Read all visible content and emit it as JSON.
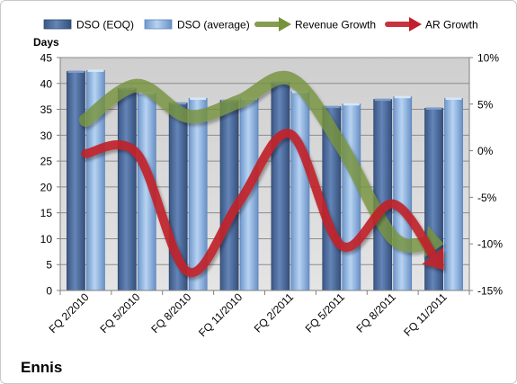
{
  "company": "Ennis",
  "chart_data": {
    "type": "bar",
    "title": "",
    "categories": [
      "FQ 2/2010",
      "FQ 5/2010",
      "FQ 8/2010",
      "FQ 11/2010",
      "FQ 2/2011",
      "FQ 5/2011",
      "FQ 8/2011",
      "FQ 11/2011"
    ],
    "ylabel": "Days",
    "ylim": [
      0,
      45
    ],
    "yticks": [
      "0",
      "5",
      "10",
      "15",
      "20",
      "25",
      "30",
      "35",
      "40",
      "45"
    ],
    "y2lim": [
      -15,
      10
    ],
    "y2ticks": [
      "-15%",
      "-10%",
      "-5%",
      "0%",
      "5%",
      "10%"
    ],
    "grid": true,
    "legend_position": "top",
    "series": [
      {
        "name": "DSO (EOQ)",
        "kind": "bar",
        "axis": "left",
        "color": "#4a6a99",
        "values": [
          42.3,
          39.0,
          36.2,
          36.7,
          40.2,
          35.5,
          36.9,
          35.2
        ]
      },
      {
        "name": "DSO (average)",
        "kind": "bar",
        "axis": "left",
        "color": "#8eb4e3",
        "values": [
          42.5,
          38.2,
          37.1,
          37.1,
          38.4,
          36.0,
          37.4,
          37.1
        ]
      },
      {
        "name": "Revenue Growth",
        "kind": "line",
        "axis": "right",
        "unit": "%",
        "color": "#77933c",
        "values": [
          3.3,
          7.0,
          3.7,
          5.3,
          7.7,
          0.5,
          -9.3,
          -10.0
        ]
      },
      {
        "name": "AR Growth",
        "kind": "line",
        "axis": "right",
        "unit": "%",
        "color": "#c0202b",
        "values": [
          -0.3,
          -0.3,
          -13.0,
          -5.5,
          1.8,
          -10.2,
          -5.7,
          -12.8
        ]
      }
    ]
  }
}
